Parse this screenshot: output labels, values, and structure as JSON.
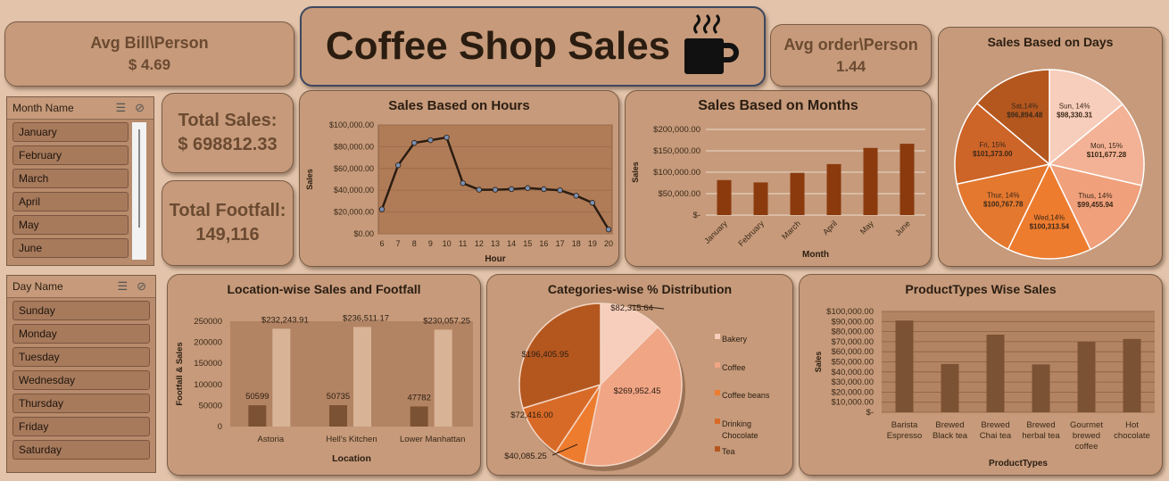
{
  "kpis": {
    "avg_bill_label": "Avg Bill\\Person",
    "avg_bill_value": "$ 4.69",
    "avg_order_label": "Avg order\\Person",
    "avg_order_value": "1.44",
    "total_sales_label": "Total Sales:",
    "total_sales_value": "$ 698812.33",
    "total_footfall_label": "Total Footfall:",
    "total_footfall_value": "149,116"
  },
  "banner": {
    "title": "Coffee Shop Sales",
    "icon": "coffee-cup-icon"
  },
  "month_slicer": {
    "title": "Month Name",
    "items": [
      "January",
      "February",
      "March",
      "April",
      "May",
      "June"
    ]
  },
  "day_slicer": {
    "title": "Day Name",
    "items": [
      "Sunday",
      "Monday",
      "Tuesday",
      "Wednesday",
      "Thursday",
      "Friday",
      "Saturday"
    ]
  },
  "colors": {
    "background": "#e3c4ab",
    "card": "#c69a7a",
    "bar_dark": "#8b3a0e",
    "bar_brown": "#7b5233",
    "bar_tan": "#d8b396",
    "line": "#2b1d12",
    "plot_bg": "#b07c57"
  },
  "chart_data": [
    {
      "id": "hours",
      "type": "line",
      "title": "Sales Based on Hours",
      "xlabel": "Hour",
      "ylabel": "Sales",
      "x": [
        6,
        7,
        8,
        9,
        10,
        11,
        12,
        13,
        14,
        15,
        16,
        17,
        18,
        19,
        20
      ],
      "y": [
        22500,
        63000,
        83500,
        86000,
        88500,
        46500,
        40500,
        40500,
        41000,
        42000,
        41000,
        40000,
        35000,
        28500,
        4000
      ],
      "y_ticks": [
        "$0.00",
        "$20,000.00",
        "$40,000.00",
        "$60,000.00",
        "$80,000.00",
        "$100,000.00"
      ],
      "ylim": [
        0,
        100000
      ]
    },
    {
      "id": "months",
      "type": "bar",
      "title": "Sales Based on Months",
      "xlabel": "Month",
      "ylabel": "Sales",
      "categories": [
        "January",
        "February",
        "March",
        "April",
        "May",
        "June"
      ],
      "values": [
        81678,
        76145,
        98835,
        118941,
        156728,
        166486
      ],
      "y_ticks": [
        "$-",
        "$50,000.00",
        "$100,000.00",
        "$150,000.00",
        "$200,000.00"
      ],
      "ylim": [
        0,
        200000
      ]
    },
    {
      "id": "days",
      "type": "pie",
      "title": "Sales Based on Days",
      "slices": [
        {
          "label": "Sun, 14%",
          "value_label": "$98,330.31",
          "value": 98330.31,
          "color": "#f7cdbb"
        },
        {
          "label": "Mon, 15%",
          "value_label": "$101,677.28",
          "value": 101677.28,
          "color": "#f3b295"
        },
        {
          "label": "Thus, 14%",
          "value_label": "$99,455.94",
          "value": 99455.94,
          "color": "#f0a07b"
        },
        {
          "label": "Wed,14%",
          "value_label": "$100,313.54",
          "value": 100313.54,
          "color": "#ee7c2f"
        },
        {
          "label": "Thur, 14%",
          "value_label": "$100,767.78",
          "value": 100767.78,
          "color": "#e4782f"
        },
        {
          "label": "Fri, 15%",
          "value_label": "$101,373.00",
          "value": 101373.0,
          "color": "#cd6428"
        },
        {
          "label": "Sat,14%",
          "value_label": "$96,894.48",
          "value": 96894.48,
          "color": "#b3571f"
        }
      ]
    },
    {
      "id": "location",
      "type": "bar",
      "title": "Location-wise Sales and Footfall",
      "xlabel": "Location",
      "ylabel": "Footfall & Sales",
      "categories": [
        "Astoria",
        "Hell's Kitchen",
        "Lower Manhattan"
      ],
      "series": [
        {
          "values": [
            50599,
            50735,
            47782
          ],
          "labels": [
            "50599",
            "50735",
            "47782"
          ],
          "color": "#7b5233"
        },
        {
          "values": [
            232243.91,
            236511.17,
            230057.25
          ],
          "labels": [
            "$232,243.91",
            "$236,511.17",
            "$230,057.25"
          ],
          "color": "#d8b396"
        }
      ],
      "y_ticks": [
        "0",
        "50000",
        "100000",
        "150000",
        "200000",
        "250000"
      ],
      "ylim": [
        0,
        250000
      ]
    },
    {
      "id": "categories",
      "type": "pie",
      "title": "Categories-wise % Distribution",
      "slices": [
        {
          "label": "Bakery",
          "value": 82315.64,
          "value_label": "$82,315.64",
          "color": "#f7cdbb"
        },
        {
          "label": "Coffee",
          "value": 269952.45,
          "value_label": "$269,952.45",
          "color": "#f0a585"
        },
        {
          "label": "Coffee beans",
          "value": 40085.25,
          "value_label": "$40,085.25",
          "color": "#ee7c2f"
        },
        {
          "label": "Drinking Chocolate",
          "value": 72416.0,
          "value_label": "$72,416.00",
          "color": "#d86a28"
        },
        {
          "label": "Tea",
          "value": 196405.95,
          "value_label": "$196,405.95",
          "color": "#b3571f"
        }
      ]
    },
    {
      "id": "producttypes",
      "type": "bar",
      "title": "ProductTypes Wise Sales",
      "xlabel": "ProductTypes",
      "ylabel": "Sales",
      "categories": [
        "Barista Espresso",
        "Brewed Black tea",
        "Brewed Chai tea",
        "Brewed herbal tea",
        "Gourmet brewed coffee",
        "Hot chocolate"
      ],
      "values": [
        91000,
        47900,
        77000,
        47500,
        70000,
        72700
      ],
      "y_ticks": [
        "$-",
        "$10,000.00",
        "$20,000.00",
        "$30,000.00",
        "$40,000.00",
        "$50,000.00",
        "$60,000.00",
        "$70,000.00",
        "$80,000.00",
        "$90,000.00",
        "$100,000.00"
      ],
      "ylim": [
        0,
        100000
      ]
    }
  ]
}
